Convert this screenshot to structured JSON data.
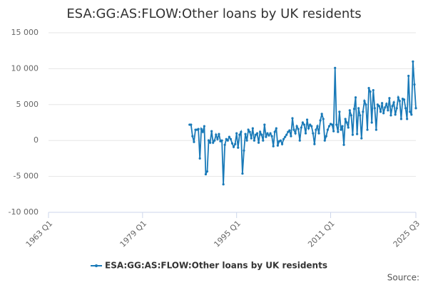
{
  "chart_data": {
    "type": "line",
    "title": "ESA:GG:AS:FLOW:Other loans by UK residents",
    "source": "Source:",
    "x": [
      "1987 Q1",
      "1987 Q2",
      "1987 Q3",
      "1987 Q4",
      "1988 Q1",
      "1988 Q2",
      "1988 Q3",
      "1988 Q4",
      "1989 Q1",
      "1989 Q2",
      "1989 Q3",
      "1989 Q4",
      "1990 Q1",
      "1990 Q2",
      "1990 Q3",
      "1990 Q4",
      "1991 Q1",
      "1991 Q2",
      "1991 Q3",
      "1991 Q4",
      "1992 Q1",
      "1992 Q2",
      "1992 Q3",
      "1992 Q4",
      "1993 Q1",
      "1993 Q2",
      "1993 Q3",
      "1993 Q4",
      "1994 Q1",
      "1994 Q2",
      "1994 Q3",
      "1994 Q4",
      "1995 Q1",
      "1995 Q2",
      "1995 Q3",
      "1995 Q4",
      "1996 Q1",
      "1996 Q2",
      "1996 Q3",
      "1996 Q4",
      "1997 Q1",
      "1997 Q2",
      "1997 Q3",
      "1997 Q4",
      "1998 Q1",
      "1998 Q2",
      "1998 Q3",
      "1998 Q4",
      "1999 Q1",
      "1999 Q2",
      "1999 Q3",
      "1999 Q4",
      "2000 Q1",
      "2000 Q2",
      "2000 Q3",
      "2000 Q4",
      "2001 Q1",
      "2001 Q2",
      "2001 Q3",
      "2001 Q4",
      "2002 Q1",
      "2002 Q2",
      "2002 Q3",
      "2002 Q4",
      "2003 Q1",
      "2003 Q2",
      "2003 Q3",
      "2003 Q4",
      "2004 Q1",
      "2004 Q2",
      "2004 Q3",
      "2004 Q4",
      "2005 Q1",
      "2005 Q2",
      "2005 Q3",
      "2005 Q4",
      "2006 Q1",
      "2006 Q2",
      "2006 Q3",
      "2006 Q4",
      "2007 Q1",
      "2007 Q2",
      "2007 Q3",
      "2007 Q4",
      "2008 Q1",
      "2008 Q2",
      "2008 Q3",
      "2008 Q4",
      "2009 Q1",
      "2009 Q2",
      "2009 Q3",
      "2009 Q4",
      "2010 Q1",
      "2010 Q2",
      "2010 Q3",
      "2010 Q4",
      "2011 Q1",
      "2011 Q2",
      "2011 Q3",
      "2011 Q4",
      "2012 Q1",
      "2012 Q2",
      "2012 Q3",
      "2012 Q4",
      "2013 Q1",
      "2013 Q2",
      "2013 Q3",
      "2013 Q4",
      "2014 Q1",
      "2014 Q2",
      "2014 Q3",
      "2014 Q4",
      "2015 Q1",
      "2015 Q2",
      "2015 Q3",
      "2015 Q4",
      "2016 Q1",
      "2016 Q2",
      "2016 Q3",
      "2016 Q4",
      "2017 Q1",
      "2017 Q2",
      "2017 Q3",
      "2017 Q4",
      "2018 Q1",
      "2018 Q2",
      "2018 Q3",
      "2018 Q4",
      "2019 Q1",
      "2019 Q2",
      "2019 Q3",
      "2019 Q4",
      "2020 Q1",
      "2020 Q2",
      "2020 Q3",
      "2020 Q4",
      "2021 Q1",
      "2021 Q2",
      "2021 Q3",
      "2021 Q4",
      "2022 Q1",
      "2022 Q2",
      "2022 Q3",
      "2022 Q4",
      "2023 Q1",
      "2023 Q2",
      "2023 Q3",
      "2023 Q4",
      "2024 Q1",
      "2024 Q2",
      "2024 Q3",
      "2024 Q4",
      "2025 Q1",
      "2025 Q2",
      "2025 Q3"
    ],
    "series": [
      {
        "name": "ESA:GG:AS:FLOW:Other loans by UK residents",
        "color": "#1a7ab8",
        "values": [
          2200,
          2200,
          600,
          -200,
          1500,
          1500,
          1600,
          -2500,
          1600,
          1200,
          2000,
          -4700,
          -4300,
          0,
          -300,
          1300,
          -300,
          0,
          800,
          200,
          900,
          -100,
          0,
          -6100,
          -600,
          200,
          0,
          500,
          200,
          -400,
          -900,
          -500,
          1000,
          -1000,
          800,
          1200,
          -4600,
          -1400,
          900,
          0,
          1500,
          1200,
          300,
          1700,
          0,
          800,
          1000,
          -300,
          1200,
          800,
          0,
          2200,
          500,
          1000,
          700,
          1000,
          600,
          -800,
          1200,
          1700,
          -700,
          -100,
          0,
          -500,
          200,
          500,
          800,
          1200,
          1400,
          600,
          3100,
          1500,
          1000,
          2000,
          1600,
          0,
          1800,
          2500,
          2200,
          1000,
          2900,
          1700,
          2200,
          2000,
          1000,
          -500,
          1500,
          2000,
          1000,
          2800,
          3700,
          3000,
          0,
          600,
          1500,
          2000,
          2300,
          2200,
          1300,
          10100,
          2200,
          1200,
          4000,
          1500,
          2000,
          -600,
          3000,
          2500,
          1800,
          4200,
          3500,
          800,
          4400,
          6000,
          900,
          4500,
          3500,
          300,
          4000,
          5500,
          5000,
          1500,
          7300,
          6800,
          2500,
          7000,
          4500,
          1500,
          5000,
          4800,
          4000,
          5200,
          3800,
          4600,
          5100,
          4200,
          5900,
          3500,
          4800,
          5300,
          3600,
          4500,
          6000,
          5500,
          3000,
          5800,
          5700,
          4500,
          3000,
          9000,
          4000,
          3600,
          11000,
          7800,
          4500
        ]
      }
    ],
    "xlim": [
      "1963 Q1",
      "2025 Q3"
    ],
    "xticks": [
      "1963 Q1",
      "1979 Q1",
      "1995 Q1",
      "2011 Q1",
      "2025 Q3"
    ],
    "ylim": [
      -10000,
      15000
    ],
    "yticks": [
      {
        "value": -10000,
        "label": "-10 000"
      },
      {
        "value": -5000,
        "label": "-5 000"
      },
      0,
      {
        "value": 5000,
        "label": "5 000"
      },
      {
        "value": 10000,
        "label": "10 000"
      },
      {
        "value": 15000,
        "label": "15 000"
      }
    ],
    "grid": true,
    "legend": "bottom"
  }
}
